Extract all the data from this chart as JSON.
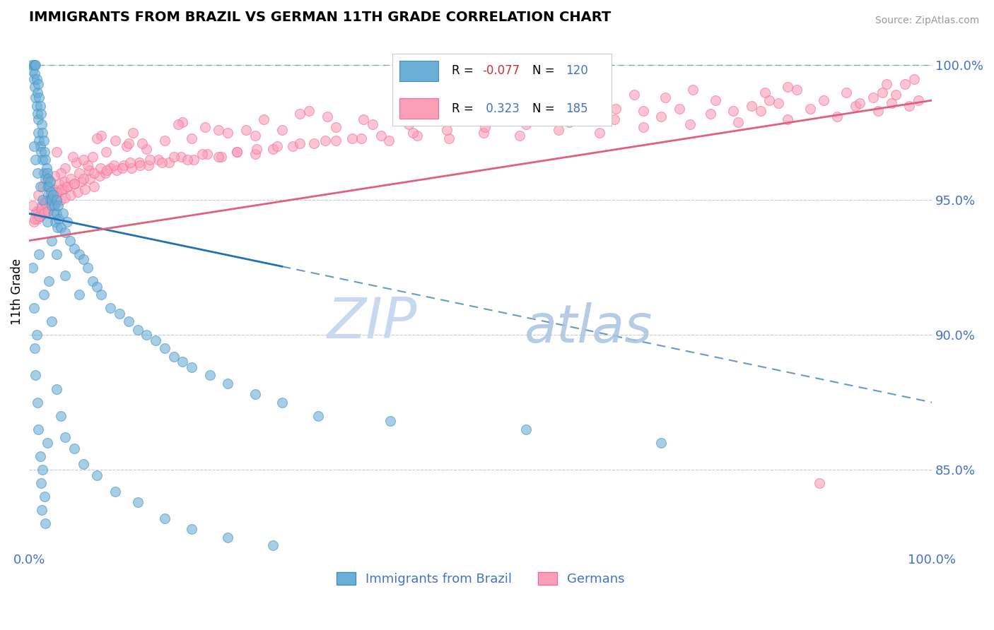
{
  "title": "IMMIGRANTS FROM BRAZIL VS GERMAN 11TH GRADE CORRELATION CHART",
  "source_text": "Source: ZipAtlas.com",
  "ylabel": "11th Grade",
  "right_yticks": [
    85.0,
    90.0,
    95.0,
    100.0
  ],
  "right_ytick_labels": [
    "85.0%",
    "90.0%",
    "95.0%",
    "100.0%"
  ],
  "legend_blue_label": "Immigrants from Brazil",
  "legend_pink_label": "Germans",
  "blue_color": "#6BAED6",
  "blue_edge_color": "#4292C6",
  "pink_color": "#FA9FB5",
  "pink_edge_color": "#F768A1",
  "trend_blue_color": "#2171B5",
  "trend_pink_color": "#E0607E",
  "axis_color": "#4472C4",
  "watermark_zip_color": "#C8D8F0",
  "watermark_atlas_color": "#A8C4E0",
  "background_color": "#FFFFFF",
  "grid_color": "#BBBBBB",
  "blue_trend_x0": 0.0,
  "blue_trend_x1": 100.0,
  "blue_trend_y0": 94.5,
  "blue_trend_y1": 87.5,
  "blue_solid_x1": 28.0,
  "pink_trend_x0": 0.0,
  "pink_trend_x1": 100.0,
  "pink_trend_y0": 93.5,
  "pink_trend_y1": 98.7,
  "xlim": [
    0,
    100
  ],
  "ylim": [
    82.0,
    101.2
  ],
  "blue_scatter_x": [
    0.3,
    0.4,
    0.5,
    0.5,
    0.6,
    0.6,
    0.6,
    0.7,
    0.7,
    0.8,
    0.8,
    0.9,
    0.9,
    1.0,
    1.0,
    1.0,
    1.1,
    1.1,
    1.2,
    1.2,
    1.3,
    1.3,
    1.4,
    1.5,
    1.5,
    1.6,
    1.6,
    1.7,
    1.8,
    1.8,
    1.9,
    2.0,
    2.0,
    2.1,
    2.1,
    2.2,
    2.3,
    2.3,
    2.4,
    2.5,
    2.5,
    2.6,
    2.7,
    2.8,
    2.9,
    3.0,
    3.0,
    3.1,
    3.2,
    3.3,
    3.5,
    3.7,
    4.0,
    4.2,
    4.5,
    5.0,
    5.5,
    6.0,
    6.5,
    7.0,
    7.5,
    8.0,
    9.0,
    10.0,
    11.0,
    12.0,
    13.0,
    14.0,
    15.0,
    16.0,
    17.0,
    18.0,
    20.0,
    22.0,
    25.0,
    28.0,
    32.0,
    40.0,
    55.0,
    70.0,
    0.4,
    0.5,
    0.6,
    0.7,
    0.8,
    0.9,
    1.0,
    1.1,
    1.2,
    1.3,
    1.4,
    1.5,
    1.6,
    1.7,
    1.8,
    2.0,
    2.2,
    2.5,
    3.0,
    3.5,
    4.0,
    5.0,
    6.0,
    7.5,
    9.5,
    12.0,
    15.0,
    18.0,
    22.0,
    27.0,
    0.5,
    0.7,
    0.9,
    1.2,
    1.5,
    2.0,
    2.5,
    3.0,
    4.0,
    5.5
  ],
  "blue_scatter_y": [
    100.0,
    99.8,
    100.0,
    99.5,
    100.0,
    99.7,
    99.2,
    100.0,
    98.8,
    99.5,
    98.5,
    99.0,
    98.2,
    99.3,
    98.0,
    97.5,
    98.8,
    97.2,
    98.5,
    97.0,
    98.2,
    96.8,
    97.8,
    97.5,
    96.5,
    97.2,
    96.0,
    96.8,
    96.5,
    95.8,
    96.2,
    95.5,
    96.0,
    95.8,
    95.2,
    95.5,
    95.0,
    95.7,
    95.3,
    95.0,
    94.8,
    95.2,
    94.5,
    94.8,
    94.2,
    94.5,
    95.0,
    94.0,
    94.8,
    94.3,
    94.0,
    94.5,
    93.8,
    94.2,
    93.5,
    93.2,
    93.0,
    92.8,
    92.5,
    92.0,
    91.8,
    91.5,
    91.0,
    90.8,
    90.5,
    90.2,
    90.0,
    89.8,
    89.5,
    89.2,
    89.0,
    88.8,
    88.5,
    88.2,
    87.8,
    87.5,
    87.0,
    86.8,
    86.5,
    86.0,
    92.5,
    91.0,
    89.5,
    88.5,
    90.0,
    87.5,
    86.5,
    93.0,
    85.5,
    84.5,
    83.5,
    85.0,
    91.5,
    84.0,
    83.0,
    86.0,
    92.0,
    90.5,
    88.0,
    87.0,
    86.2,
    85.8,
    85.2,
    84.8,
    84.2,
    83.8,
    83.2,
    82.8,
    82.5,
    82.2,
    97.0,
    96.5,
    96.0,
    95.5,
    95.0,
    94.2,
    93.5,
    93.0,
    92.2,
    91.5
  ],
  "pink_scatter_x": [
    0.5,
    0.7,
    0.9,
    1.0,
    1.2,
    1.4,
    1.5,
    1.7,
    1.9,
    2.0,
    2.2,
    2.4,
    2.6,
    2.8,
    3.0,
    3.2,
    3.5,
    3.8,
    4.0,
    4.3,
    4.6,
    5.0,
    5.4,
    5.8,
    6.2,
    6.7,
    7.2,
    7.8,
    8.4,
    9.0,
    9.7,
    10.5,
    11.3,
    12.2,
    13.2,
    14.3,
    15.5,
    16.8,
    18.2,
    19.7,
    21.3,
    23.0,
    25.0,
    27.0,
    29.2,
    31.5,
    34.0,
    36.8,
    39.8,
    43.0,
    46.5,
    50.3,
    54.3,
    58.6,
    63.2,
    68.0,
    73.2,
    78.5,
    84.0,
    89.5,
    94.0,
    97.5,
    0.6,
    0.8,
    1.1,
    1.3,
    1.6,
    1.8,
    2.1,
    2.3,
    2.5,
    2.7,
    3.0,
    3.3,
    3.6,
    3.9,
    4.2,
    4.6,
    5.0,
    5.5,
    6.0,
    6.6,
    7.2,
    7.9,
    8.6,
    9.4,
    10.3,
    11.2,
    12.3,
    13.4,
    14.7,
    16.0,
    17.5,
    19.2,
    21.0,
    23.0,
    25.2,
    27.5,
    30.0,
    32.8,
    35.8,
    39.0,
    42.5,
    46.3,
    50.5,
    55.0,
    59.8,
    64.8,
    70.0,
    75.5,
    81.0,
    86.5,
    91.5,
    95.5,
    98.5,
    2.0,
    5.2,
    10.8,
    22.0,
    38.0,
    60.0,
    78.0,
    92.0,
    1.5,
    4.0,
    8.5,
    18.0,
    34.0,
    55.0,
    72.0,
    88.0,
    3.5,
    7.0,
    15.0,
    28.0,
    47.0,
    68.0,
    83.0,
    96.0,
    6.5,
    13.0,
    25.0,
    42.0,
    62.0,
    80.0,
    93.5,
    11.0,
    21.0,
    37.0,
    58.0,
    76.0,
    90.5,
    0.4,
    1.0,
    2.8,
    6.0,
    12.5,
    24.0,
    44.0,
    65.0,
    82.0,
    94.5,
    4.8,
    9.5,
    19.5,
    33.0,
    52.0,
    70.5,
    85.0,
    97.0,
    8.0,
    17.0,
    31.0,
    49.0,
    67.0,
    84.0,
    98.0,
    3.0,
    11.5,
    26.0,
    45.0,
    63.5,
    81.5,
    95.0,
    7.5,
    16.5,
    30.0,
    51.0,
    73.5,
    87.5
  ],
  "pink_scatter_y": [
    94.2,
    94.5,
    94.3,
    94.6,
    94.4,
    94.8,
    94.5,
    94.9,
    94.6,
    95.0,
    94.7,
    95.1,
    94.8,
    95.2,
    94.9,
    95.3,
    95.0,
    95.4,
    95.1,
    95.5,
    95.2,
    95.6,
    95.3,
    95.7,
    95.4,
    95.8,
    95.5,
    95.9,
    96.0,
    96.2,
    96.1,
    96.3,
    96.2,
    96.4,
    96.3,
    96.5,
    96.4,
    96.6,
    96.5,
    96.7,
    96.6,
    96.8,
    96.7,
    96.9,
    97.0,
    97.1,
    97.2,
    97.3,
    97.2,
    97.4,
    97.3,
    97.5,
    97.4,
    97.6,
    97.5,
    97.7,
    97.8,
    97.9,
    98.0,
    98.1,
    98.3,
    98.5,
    94.3,
    94.6,
    94.4,
    94.7,
    94.5,
    94.9,
    94.6,
    95.0,
    95.2,
    95.4,
    95.3,
    95.6,
    95.4,
    95.7,
    95.5,
    95.8,
    95.6,
    96.0,
    95.8,
    96.1,
    96.0,
    96.2,
    96.1,
    96.3,
    96.2,
    96.4,
    96.3,
    96.5,
    96.4,
    96.6,
    96.5,
    96.7,
    96.6,
    96.8,
    96.9,
    97.0,
    97.1,
    97.2,
    97.3,
    97.4,
    97.5,
    97.6,
    97.7,
    97.8,
    97.9,
    98.0,
    98.1,
    98.2,
    98.3,
    98.4,
    98.5,
    98.6,
    98.7,
    95.8,
    96.4,
    97.0,
    97.5,
    97.8,
    98.0,
    98.3,
    98.6,
    95.5,
    96.2,
    96.8,
    97.3,
    97.7,
    98.1,
    98.4,
    98.7,
    96.0,
    96.6,
    97.2,
    97.6,
    98.0,
    98.3,
    98.6,
    98.9,
    96.3,
    96.9,
    97.4,
    97.8,
    98.2,
    98.5,
    98.8,
    97.1,
    97.6,
    98.0,
    98.4,
    98.7,
    99.0,
    94.8,
    95.2,
    95.9,
    96.5,
    97.1,
    97.6,
    98.0,
    98.4,
    98.7,
    99.0,
    96.6,
    97.2,
    97.7,
    98.1,
    98.5,
    98.8,
    99.1,
    99.3,
    97.4,
    97.9,
    98.3,
    98.6,
    98.9,
    99.2,
    99.5,
    96.8,
    97.5,
    98.0,
    98.4,
    98.7,
    99.0,
    99.3,
    97.3,
    97.8,
    98.2,
    98.6,
    99.1,
    84.5
  ]
}
